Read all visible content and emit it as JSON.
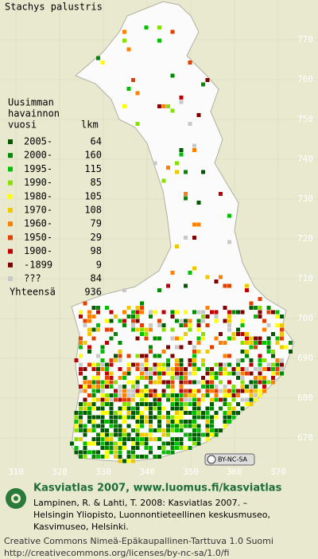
{
  "title": "Stachys palustris",
  "legend": {
    "header": [
      "Uusimman",
      "havainnon",
      "vuosi"
    ],
    "count_header": "lkm",
    "entries": [
      {
        "label": "2005-",
        "count": 64,
        "color": "#005a00"
      },
      {
        "label": "2000-",
        "count": 160,
        "color": "#008a00"
      },
      {
        "label": "1995-",
        "count": 115,
        "color": "#00c000"
      },
      {
        "label": "1990-",
        "count": 85,
        "color": "#88e000"
      },
      {
        "label": "1980-",
        "count": 105,
        "color": "#ffff00"
      },
      {
        "label": "1970-",
        "count": 108,
        "color": "#f0c800"
      },
      {
        "label": "1960-",
        "count": 79,
        "color": "#ff8000"
      },
      {
        "label": "1950-",
        "count": 29,
        "color": "#e04000"
      },
      {
        "label": "1900-",
        "count": 98,
        "color": "#c00000"
      },
      {
        "label": "-1899",
        "count": 9,
        "color": "#800000"
      },
      {
        "label": "???",
        "count": 84,
        "color": "#c8c8c8"
      }
    ],
    "total_label": "Yhteensä",
    "total": 936
  },
  "map_grid": {
    "xticks": [
      310,
      320,
      330,
      340,
      350,
      360,
      370
    ],
    "yticks": [
      770,
      760,
      750,
      740,
      730,
      720,
      710,
      700,
      690,
      680,
      670
    ]
  },
  "license_badge": "BY-NC-SA",
  "footer": {
    "heading": "Kasviatlas 2007, www.luomus.fi/kasviatlas",
    "citation": [
      "Lampinen, R. & Lahti, T. 2008: Kasviatlas 2007. –",
      "Helsingin Yliopisto, Luonnontieteellinen keskusmuseo,",
      "Kasvimuseo, Helsinki."
    ],
    "license": [
      "Creative Commons Nimeä-Epäkaupallinen-Tarttuva 1.0 Suomi",
      "http://creativecommons.org/licenses/by-nc-sa/1.0/fi"
    ]
  }
}
